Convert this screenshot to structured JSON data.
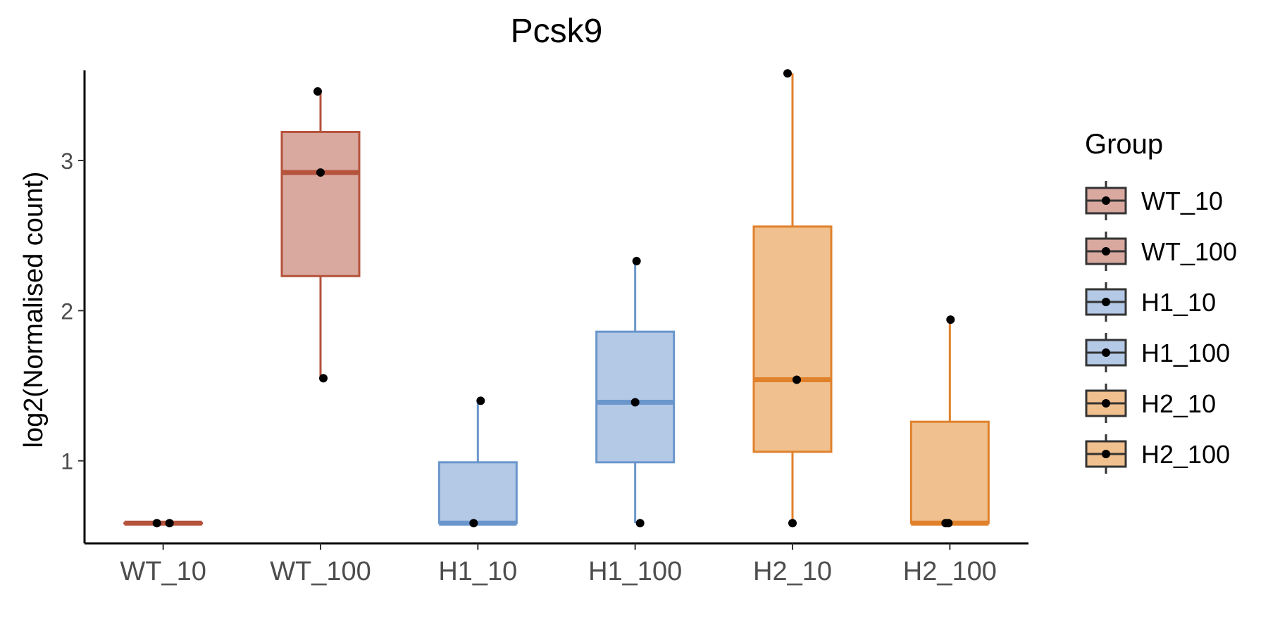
{
  "chart_data": {
    "type": "box",
    "title": "Pcsk9",
    "xlabel": "",
    "ylabel": "log2(Normalised count)",
    "ylim": [
      0.45,
      3.6
    ],
    "yticks": [
      1,
      2,
      3
    ],
    "grid": false,
    "legend": {
      "title": "Group",
      "position": "right",
      "entries": [
        "WT_10",
        "WT_100",
        "H1_10",
        "H1_100",
        "H2_10",
        "H2_100"
      ]
    },
    "categories": [
      "WT_10",
      "WT_100",
      "H1_10",
      "H1_100",
      "H2_10",
      "H2_100"
    ],
    "groups": [
      {
        "name": "WT_10",
        "color": "#b5533c",
        "fill": "#d9a89f",
        "q1": 0.585,
        "median": 0.585,
        "q3": 0.585,
        "whisker_low": 0.585,
        "whisker_high": 0.585,
        "points": [
          0.585,
          0.585
        ]
      },
      {
        "name": "WT_100",
        "color": "#b5533c",
        "fill": "#d9a89f",
        "q1": 2.23,
        "median": 2.92,
        "q3": 3.19,
        "whisker_low": 1.55,
        "whisker_high": 3.46,
        "points": [
          3.46,
          2.92,
          1.55
        ]
      },
      {
        "name": "H1_10",
        "color": "#6a96cc",
        "fill": "#b3c9e6",
        "q1": 0.585,
        "median": 0.585,
        "q3": 0.99,
        "whisker_low": 0.585,
        "whisker_high": 1.4,
        "points": [
          1.4,
          0.585
        ]
      },
      {
        "name": "H1_100",
        "color": "#6a96cc",
        "fill": "#b3c9e6",
        "q1": 0.99,
        "median": 1.39,
        "q3": 1.86,
        "whisker_low": 0.585,
        "whisker_high": 2.33,
        "points": [
          2.33,
          1.39,
          0.585
        ]
      },
      {
        "name": "H2_10",
        "color": "#e0812c",
        "fill": "#f0c08e",
        "q1": 1.06,
        "median": 1.54,
        "q3": 2.56,
        "whisker_low": 0.585,
        "whisker_high": 3.58,
        "points": [
          3.58,
          1.54,
          0.585
        ]
      },
      {
        "name": "H2_100",
        "color": "#e0812c",
        "fill": "#f0c08e",
        "q1": 0.585,
        "median": 0.585,
        "q3": 1.26,
        "whisker_low": 0.585,
        "whisker_high": 1.94,
        "points": [
          1.94,
          0.585,
          0.585
        ]
      }
    ]
  }
}
